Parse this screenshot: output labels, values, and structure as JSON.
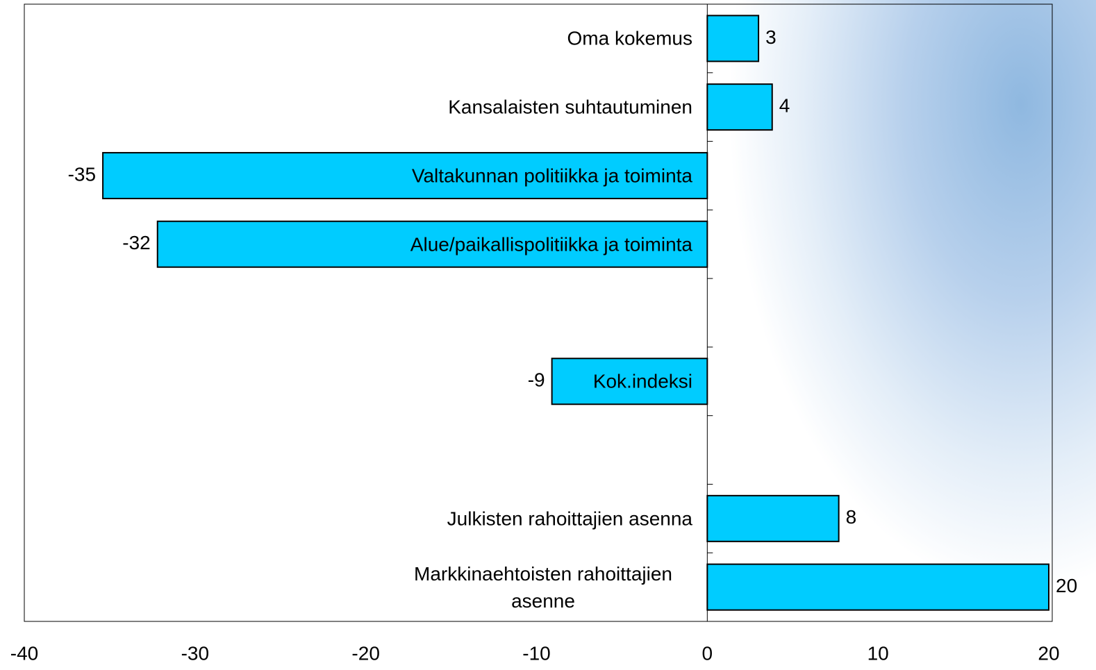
{
  "chart_data": {
    "type": "bar",
    "orientation": "horizontal",
    "categories": [
      "Oma kokemus",
      "Kansalaisten suhtautuminen",
      "Valtakunnan politiikka ja toiminta",
      "Alue/paikallispolitiikka ja toiminta",
      null,
      "Kok.indeksi",
      null,
      "Julkisten rahoittajien asenna",
      "Markkinaehtoisten rahoittajien asenne"
    ],
    "values": [
      3,
      3.8,
      -35.4,
      -32.2,
      null,
      -9.1,
      null,
      7.7,
      20
    ],
    "value_labels": [
      "3",
      "4",
      "-35",
      "-32",
      null,
      "-9",
      null,
      "8",
      "20"
    ],
    "color": "#00ccff",
    "xlim": [
      -40,
      20
    ],
    "xticks": [
      -40,
      -30,
      -20,
      -10,
      0,
      10,
      20
    ]
  }
}
